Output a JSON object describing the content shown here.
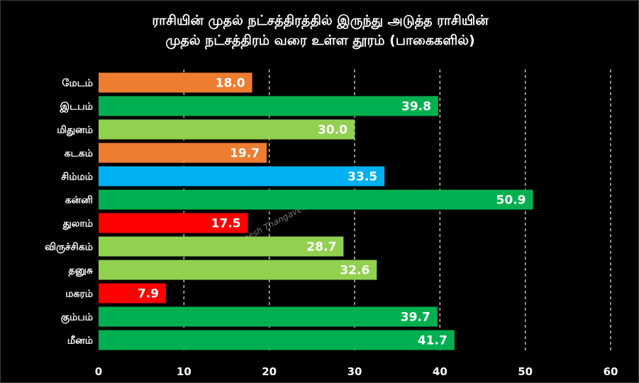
{
  "chart_data": {
    "type": "bar",
    "orientation": "horizontal",
    "title_lines": [
      "ராசியின் முதல் நட்சத்திரத்தில் இருந்து அடுத்த ராசியின்",
      "முதல் நட்சத்திரம் வரை உள்ள தூரம் (பாகைகளில்)"
    ],
    "categories": [
      "மேடம்",
      "இடபம்",
      "மிதுனம்",
      "கடகம்",
      "சிம்மம்",
      "கன்னி",
      "துலாம்",
      "விருச்சிகம்",
      "தனுசு",
      "மகரம்",
      "கும்பம்",
      "மீனம்"
    ],
    "values": [
      18.0,
      39.8,
      30.0,
      19.7,
      33.5,
      50.9,
      17.5,
      28.7,
      32.6,
      7.9,
      39.7,
      41.7
    ],
    "bar_colors": [
      "#ED7D31",
      "#00B050",
      "#92D050",
      "#ED7D31",
      "#00B0F0",
      "#00B050",
      "#FF0000",
      "#92D050",
      "#92D050",
      "#FF0000",
      "#00B050",
      "#00B050"
    ],
    "xlim": [
      0,
      60
    ],
    "xticks": [
      0,
      10,
      20,
      30,
      40,
      50,
      60
    ],
    "grid": "vertical dashed",
    "background": "#000000",
    "text_color": "#FFFFFF",
    "watermark": "© Ramesh Thangavel, PhD"
  }
}
